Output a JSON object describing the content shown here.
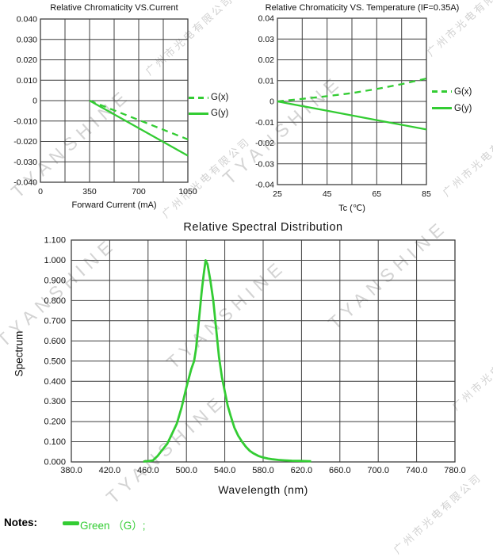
{
  "colors": {
    "green": "#33cc33",
    "grid": "#3f3f3f",
    "text": "#111111",
    "watermark": "#c9c9c9"
  },
  "watermark": {
    "text_en": "TYANSHINE",
    "text_cn": "广州市光电有限公司"
  },
  "notes": {
    "label": "Notes:",
    "entries": [
      {
        "name": "Green （G）;",
        "color": "#33cc33",
        "swatch": "solid-line"
      }
    ]
  },
  "chart_data": [
    {
      "id": "chromaticity-vs-current",
      "type": "line",
      "title": "Relative Chromaticity VS.Current",
      "xlabel": "Forward Current (mA)",
      "ylabel": "",
      "xlim": [
        0,
        1050
      ],
      "ylim": [
        -0.04,
        0.04
      ],
      "x_grid_step": 175,
      "y_grid_step": 0.01,
      "grid": true,
      "legend_position": "right",
      "x_ticks": [
        {
          "v": 0,
          "label": "0"
        },
        {
          "v": 350,
          "label": "350"
        },
        {
          "v": 700,
          "label": "700"
        },
        {
          "v": 1050,
          "label": "1050"
        }
      ],
      "y_ticks": [
        {
          "v": 0.04,
          "label": "0.040"
        },
        {
          "v": 0.03,
          "label": "0.030"
        },
        {
          "v": 0.02,
          "label": "0.020"
        },
        {
          "v": 0.01,
          "label": "0.010"
        },
        {
          "v": 0,
          "label": "0"
        },
        {
          "v": -0.01,
          "label": "-0.010"
        },
        {
          "v": -0.02,
          "label": "-0.020"
        },
        {
          "v": -0.03,
          "label": "-0.030"
        },
        {
          "v": -0.04,
          "label": "-0.040"
        }
      ],
      "legend": [
        {
          "name": "G(x)",
          "style": "dashed"
        },
        {
          "name": "G(y)",
          "style": "solid"
        }
      ],
      "series": [
        {
          "name": "G(x)",
          "style": "dashed",
          "points": [
            [
              350,
              0
            ],
            [
              1050,
              -0.019
            ]
          ]
        },
        {
          "name": "G(y)",
          "style": "solid",
          "points": [
            [
              350,
              0
            ],
            [
              1050,
              -0.027
            ]
          ]
        }
      ]
    },
    {
      "id": "chromaticity-vs-temperature",
      "type": "line",
      "title": "Relative Chromaticity VS. Temperature (IF=0.35A)",
      "xlabel": "Tc (℃)",
      "ylabel": "",
      "xlim": [
        25,
        85
      ],
      "ylim": [
        -0.04,
        0.04
      ],
      "x_grid_step": 10,
      "y_grid_step": 0.01,
      "grid": true,
      "legend_position": "right",
      "x_ticks": [
        {
          "v": 25,
          "label": "25"
        },
        {
          "v": 45,
          "label": "45"
        },
        {
          "v": 65,
          "label": "65"
        },
        {
          "v": 85,
          "label": "85"
        }
      ],
      "y_ticks": [
        {
          "v": 0.04,
          "label": "0.04"
        },
        {
          "v": 0.03,
          "label": "0.03"
        },
        {
          "v": 0.02,
          "label": "0.02"
        },
        {
          "v": 0.01,
          "label": "0.01"
        },
        {
          "v": 0,
          "label": "0"
        },
        {
          "v": -0.01,
          "label": "-0.01"
        },
        {
          "v": -0.02,
          "label": "-0.02"
        },
        {
          "v": -0.03,
          "label": "-0.03"
        },
        {
          "v": -0.04,
          "label": "-0.04"
        }
      ],
      "legend": [
        {
          "name": "G(x)",
          "style": "dashed"
        },
        {
          "name": "G(y)",
          "style": "solid"
        }
      ],
      "series": [
        {
          "name": "G(x)",
          "style": "dashed",
          "points": [
            [
              25,
              0
            ],
            [
              35,
              0.0012
            ],
            [
              45,
              0.0025
            ],
            [
              55,
              0.004
            ],
            [
              65,
              0.006
            ],
            [
              75,
              0.0083
            ],
            [
              85,
              0.011
            ]
          ]
        },
        {
          "name": "G(y)",
          "style": "solid",
          "points": [
            [
              25,
              0
            ],
            [
              45,
              -0.0045
            ],
            [
              65,
              -0.009
            ],
            [
              85,
              -0.0135
            ]
          ]
        }
      ]
    },
    {
      "id": "relative-spectral-distribution",
      "type": "line",
      "title": "Relative Spectral Distribution",
      "xlabel": "Wavelength (nm)",
      "ylabel": "Spectrum",
      "xlim": [
        380,
        780
      ],
      "ylim": [
        0,
        1.1
      ],
      "x_grid_step": 40,
      "y_grid_step": 0.1,
      "grid": true,
      "legend_position": "none",
      "x_ticks": [
        {
          "v": 380,
          "label": "380.0"
        },
        {
          "v": 420,
          "label": "420.0"
        },
        {
          "v": 460,
          "label": "460.0"
        },
        {
          "v": 500,
          "label": "500.0"
        },
        {
          "v": 540,
          "label": "540.0"
        },
        {
          "v": 580,
          "label": "580.0"
        },
        {
          "v": 620,
          "label": "620.0"
        },
        {
          "v": 660,
          "label": "660.0"
        },
        {
          "v": 700,
          "label": "700.0"
        },
        {
          "v": 740,
          "label": "740.0"
        },
        {
          "v": 780,
          "label": "780.0"
        }
      ],
      "y_ticks": [
        {
          "v": 1.1,
          "label": "1.100"
        },
        {
          "v": 1.0,
          "label": "1.000"
        },
        {
          "v": 0.9,
          "label": "0.900"
        },
        {
          "v": 0.8,
          "label": "0.800"
        },
        {
          "v": 0.7,
          "label": "0.700"
        },
        {
          "v": 0.6,
          "label": "0.600"
        },
        {
          "v": 0.5,
          "label": "0.500"
        },
        {
          "v": 0.4,
          "label": "0.400"
        },
        {
          "v": 0.3,
          "label": "0.300"
        },
        {
          "v": 0.2,
          "label": "0.200"
        },
        {
          "v": 0.1,
          "label": "0.100"
        },
        {
          "v": 0,
          "label": "0.000"
        }
      ],
      "legend": [],
      "series": [
        {
          "name": "Green (G)",
          "style": "solid",
          "points": [
            [
              455,
              0.002
            ],
            [
              460,
              0.004
            ],
            [
              465,
              0.007
            ],
            [
              470,
              0.03
            ],
            [
              475,
              0.06
            ],
            [
              480,
              0.09
            ],
            [
              485,
              0.14
            ],
            [
              490,
              0.19
            ],
            [
              495,
              0.27
            ],
            [
              500,
              0.37
            ],
            [
              505,
              0.46
            ],
            [
              508,
              0.5
            ],
            [
              510,
              0.56
            ],
            [
              513,
              0.7
            ],
            [
              516,
              0.85
            ],
            [
              518,
              0.93
            ],
            [
              520,
              1.0
            ],
            [
              522,
              0.98
            ],
            [
              525,
              0.9
            ],
            [
              528,
              0.8
            ],
            [
              531,
              0.66
            ],
            [
              534,
              0.52
            ],
            [
              537,
              0.42
            ],
            [
              540,
              0.35
            ],
            [
              543,
              0.28
            ],
            [
              546,
              0.23
            ],
            [
              550,
              0.17
            ],
            [
              554,
              0.13
            ],
            [
              558,
              0.1
            ],
            [
              562,
              0.075
            ],
            [
              566,
              0.055
            ],
            [
              570,
              0.042
            ],
            [
              575,
              0.03
            ],
            [
              580,
              0.022
            ],
            [
              585,
              0.017
            ],
            [
              590,
              0.013
            ],
            [
              596,
              0.01
            ],
            [
              602,
              0.008
            ],
            [
              610,
              0.006
            ],
            [
              618,
              0.005
            ],
            [
              626,
              0.004
            ],
            [
              630,
              0.003
            ]
          ]
        }
      ]
    }
  ]
}
